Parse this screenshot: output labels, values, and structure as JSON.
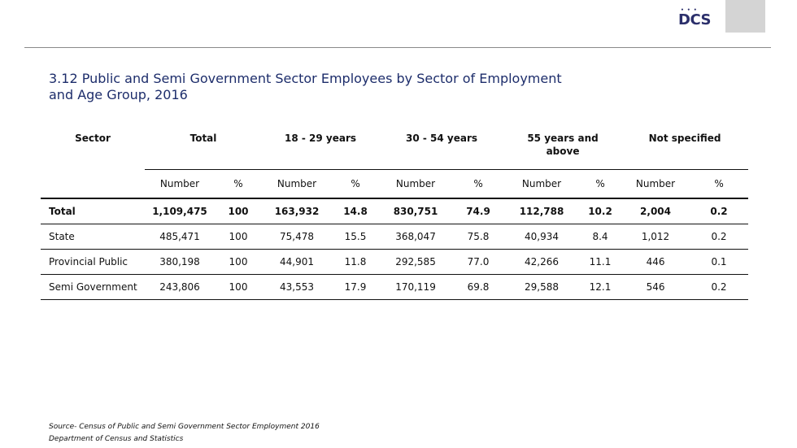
{
  "logo": {
    "text": "DCS",
    "dots": "• • •"
  },
  "title": {
    "line1": "3.12  Public and Semi Government Sector Employees by Sector of Employment",
    "line2": "and Age Group, 2016"
  },
  "table": {
    "group_headers": {
      "sector": "Sector",
      "total": "Total",
      "age_18_29": "18 - 29 years",
      "age_30_54": "30 - 54 years",
      "age_55_line1": "55 years and",
      "age_55_line2": "above",
      "not_specified": "Not specified"
    },
    "sub_headers": {
      "number": "Number",
      "percent": "%"
    },
    "rows": [
      {
        "sector": "Total",
        "total_num": "1,109,475",
        "total_pct": "100",
        "a_num": "163,932",
        "a_pct": "14.8",
        "b_num": "830,751",
        "b_pct": "74.9",
        "c_num": "112,788",
        "c_pct": "10.2",
        "d_num": "2,004",
        "d_pct": "0.2"
      },
      {
        "sector": "State",
        "total_num": "485,471",
        "total_pct": "100",
        "a_num": "75,478",
        "a_pct": "15.5",
        "b_num": "368,047",
        "b_pct": "75.8",
        "c_num": "40,934",
        "c_pct": "8.4",
        "d_num": "1,012",
        "d_pct": "0.2"
      },
      {
        "sector": "Provincial Public",
        "total_num": "380,198",
        "total_pct": "100",
        "a_num": "44,901",
        "a_pct": "11.8",
        "b_num": "292,585",
        "b_pct": "77.0",
        "c_num": "42,266",
        "c_pct": "11.1",
        "d_num": "446",
        "d_pct": "0.1"
      },
      {
        "sector": "Semi Government",
        "total_num": "243,806",
        "total_pct": "100",
        "a_num": "43,553",
        "a_pct": "17.9",
        "b_num": "170,119",
        "b_pct": "69.8",
        "c_num": "29,588",
        "c_pct": "12.1",
        "d_num": "546",
        "d_pct": "0.2"
      }
    ]
  },
  "source": {
    "line1": "Source-  Census of Public and Semi Government Sector Employment 2016",
    "line2": "Department of Census and Statistics"
  },
  "colors": {
    "title": "#1d2d6b",
    "logo": "#2b2f6b",
    "grey_box": "#d4d4d4"
  }
}
